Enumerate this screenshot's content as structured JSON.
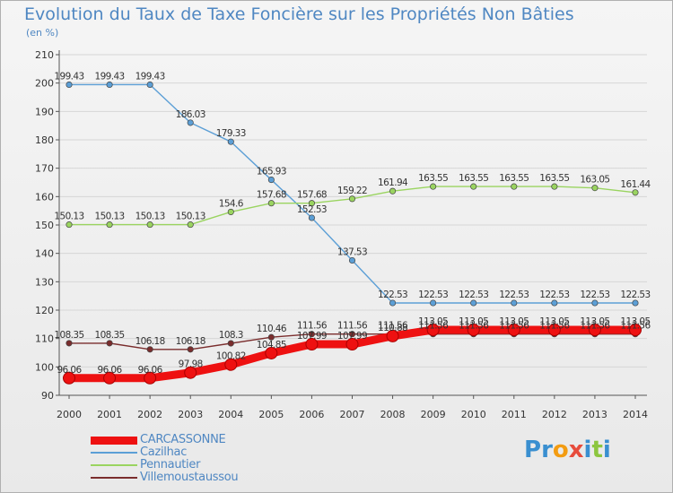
{
  "header": {
    "title": "Evolution du Taux de Taxe Foncière sur les Propriétés Non Bâties",
    "unit": "(en %)"
  },
  "logo": {
    "text": "Proxiti",
    "letters": [
      "P",
      "r",
      "o",
      "x",
      "i",
      "t",
      "i"
    ],
    "colors": [
      "#3a8fd0",
      "#3a8fd0",
      "#f39c12",
      "#e74c3c",
      "#3a8fd0",
      "#8cc63f",
      "#3a8fd0"
    ]
  },
  "chart_data": {
    "type": "line",
    "title": "Evolution du Taux de Taxe Foncière sur les Propriétés Non Bâties",
    "ylabel": "(en %)",
    "xlabel": "",
    "x": [
      "2000",
      "2001",
      "2002",
      "2003",
      "2004",
      "2005",
      "2006",
      "2007",
      "2008",
      "2009",
      "2010",
      "2011",
      "2012",
      "2013",
      "2014"
    ],
    "ylim": [
      90,
      210
    ],
    "yticks": [
      90,
      100,
      110,
      120,
      130,
      140,
      150,
      160,
      170,
      180,
      190,
      200,
      210
    ],
    "grid": "horizontal",
    "legend_position": "bottom-left",
    "series": [
      {
        "name": "CARCASSONNE",
        "color": "#ee1111",
        "values": [
          96.06,
          96.06,
          96.06,
          97.98,
          100.82,
          104.85,
          107.99,
          107.99,
          110.88,
          113.05,
          113.05,
          113.05,
          113.05,
          113.05,
          113.05
        ],
        "labels": [
          "96.06",
          "96.06",
          "96.06",
          "97.98",
          "100.82",
          "104.85",
          "107.99",
          "107.99",
          "110.88",
          "113.05",
          "113.05",
          "113.05",
          "113.05",
          "113.05",
          "113.05"
        ]
      },
      {
        "name": "Cazilhac",
        "color": "#5c9fd6",
        "values": [
          199.43,
          199.43,
          199.43,
          186.03,
          179.33,
          165.93,
          152.53,
          137.53,
          122.53,
          122.53,
          122.53,
          122.53,
          122.53,
          122.53,
          122.53
        ],
        "labels": [
          "199.43",
          "199.43",
          "199.43",
          "186.03",
          "179.33",
          "165.93",
          "152.53",
          "137.53",
          "122.53",
          "122.53",
          "122.53",
          "122.53",
          "122.53",
          "122.53",
          "122.53"
        ]
      },
      {
        "name": "Pennautier",
        "color": "#9ad460",
        "values": [
          150.13,
          150.13,
          150.13,
          150.13,
          154.6,
          157.68,
          157.68,
          159.22,
          161.94,
          163.55,
          163.55,
          163.55,
          163.55,
          163.05,
          161.44
        ],
        "labels": [
          "150.13",
          "150.13",
          "150.13",
          "150.13",
          "154.6",
          "157.68",
          "157.68",
          "159.22",
          "161.94",
          "163.55",
          "163.55",
          "163.55",
          "163.55",
          "163.05",
          "161.44"
        ]
      },
      {
        "name": "Villemoustaussou",
        "color": "#7a2d2d",
        "values": [
          108.35,
          108.35,
          106.18,
          106.18,
          108.3,
          110.46,
          111.56,
          111.56,
          111.56,
          111.56,
          111.56,
          111.56,
          111.56,
          111.56,
          111.56
        ],
        "labels": [
          "108.35",
          "108.35",
          "106.18",
          "106.18",
          "108.3",
          "110.46",
          "111.56",
          "111.56",
          "111.56",
          "111.56",
          "111.56",
          "111.56",
          "111.56",
          "111.56",
          "111.56"
        ]
      }
    ]
  }
}
